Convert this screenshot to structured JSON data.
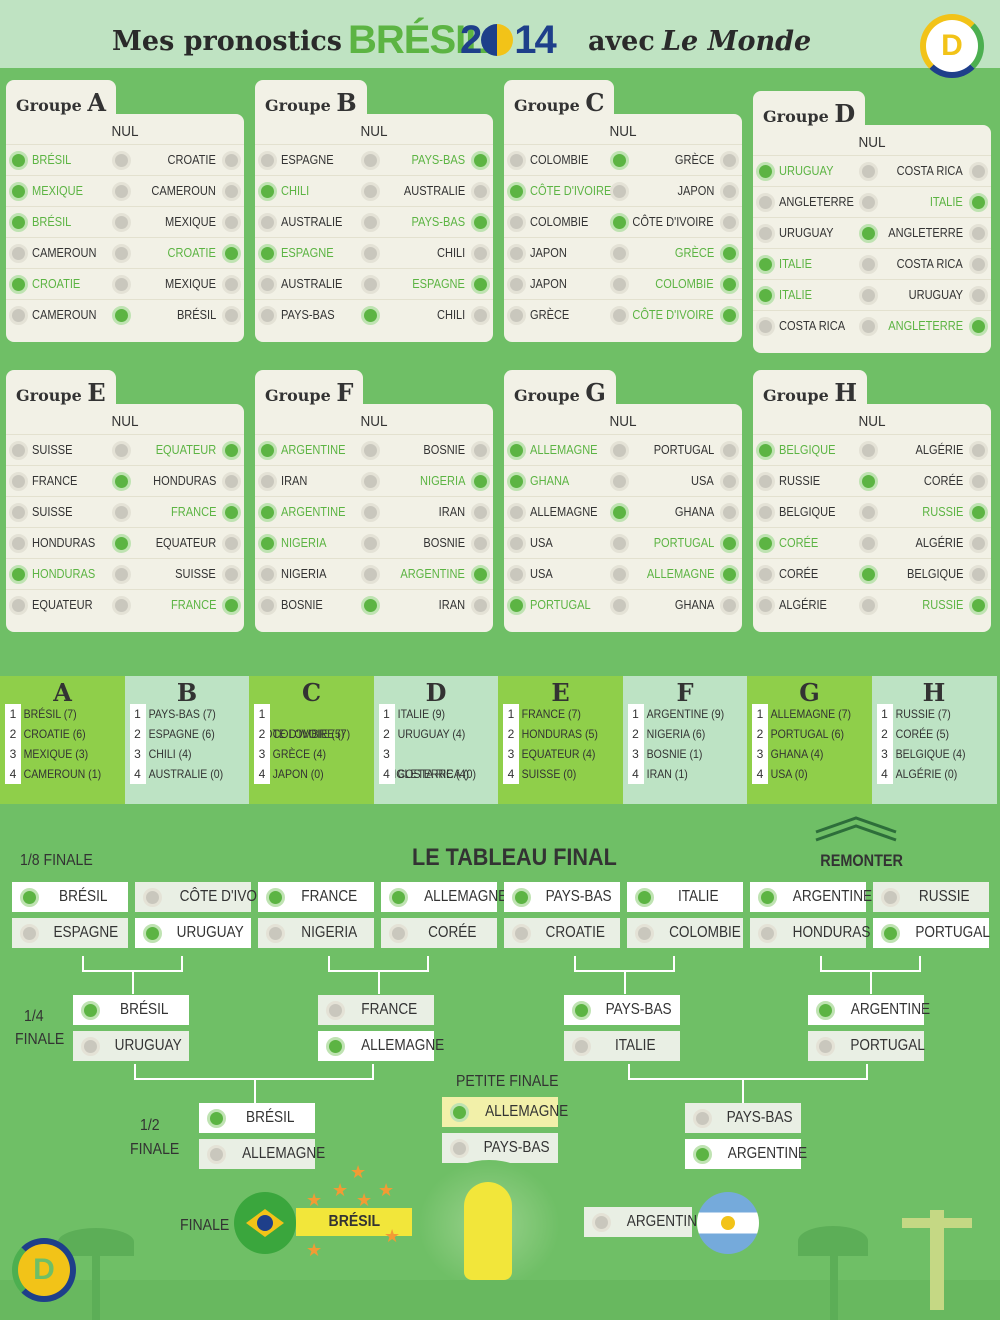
{
  "header": {
    "part1": "Mes pronostics",
    "brand": "BRÉSIL",
    "year_a": "2",
    "year_b": "14",
    "part2": "avec",
    "part3": "Le Monde",
    "logo": "D"
  },
  "group_word": "Groupe",
  "nul": "NUL",
  "groups": [
    {
      "letter": "A",
      "matches": [
        {
          "home": "BRÉSIL",
          "away": "CROATIE",
          "pick": "home"
        },
        {
          "home": "MEXIQUE",
          "away": "CAMEROUN",
          "pick": "home"
        },
        {
          "home": "BRÉSIL",
          "away": "MEXIQUE",
          "pick": "home"
        },
        {
          "home": "CAMEROUN",
          "away": "CROATIE",
          "pick": "away"
        },
        {
          "home": "CROATIE",
          "away": "MEXIQUE",
          "pick": "home"
        },
        {
          "home": "CAMEROUN",
          "away": "BRÉSIL",
          "pick": "draw"
        }
      ]
    },
    {
      "letter": "B",
      "matches": [
        {
          "home": "ESPAGNE",
          "away": "PAYS-BAS",
          "pick": "away"
        },
        {
          "home": "CHILI",
          "away": "AUSTRALIE",
          "pick": "home"
        },
        {
          "home": "AUSTRALIE",
          "away": "PAYS-BAS",
          "pick": "away"
        },
        {
          "home": "ESPAGNE",
          "away": "CHILI",
          "pick": "home"
        },
        {
          "home": "AUSTRALIE",
          "away": "ESPAGNE",
          "pick": "away"
        },
        {
          "home": "PAYS-BAS",
          "away": "CHILI",
          "pick": "draw"
        }
      ]
    },
    {
      "letter": "C",
      "matches": [
        {
          "home": "COLOMBIE",
          "away": "GRÈCE",
          "pick": "draw"
        },
        {
          "home": "CÔTE D'IVOIRE",
          "away": "JAPON",
          "pick": "home"
        },
        {
          "home": "COLOMBIE",
          "away": "CÔTE D'IVOIRE",
          "pick": "draw"
        },
        {
          "home": "JAPON",
          "away": "GRÈCE",
          "pick": "away"
        },
        {
          "home": "JAPON",
          "away": "COLOMBIE",
          "pick": "away"
        },
        {
          "home": "GRÈCE",
          "away": "CÔTE D'IVOIRE",
          "pick": "away"
        }
      ]
    },
    {
      "letter": "D",
      "matches": [
        {
          "home": "URUGUAY",
          "away": "COSTA RICA",
          "pick": "home"
        },
        {
          "home": "ANGLETERRE",
          "away": "ITALIE",
          "pick": "away"
        },
        {
          "home": "URUGUAY",
          "away": "ANGLETERRE",
          "pick": "draw"
        },
        {
          "home": "ITALIE",
          "away": "COSTA RICA",
          "pick": "home"
        },
        {
          "home": "ITALIE",
          "away": "URUGUAY",
          "pick": "home"
        },
        {
          "home": "COSTA RICA",
          "away": "ANGLETERRE",
          "pick": "away"
        }
      ]
    },
    {
      "letter": "E",
      "matches": [
        {
          "home": "SUISSE",
          "away": "EQUATEUR",
          "pick": "away"
        },
        {
          "home": "FRANCE",
          "away": "HONDURAS",
          "pick": "draw"
        },
        {
          "home": "SUISSE",
          "away": "FRANCE",
          "pick": "away"
        },
        {
          "home": "HONDURAS",
          "away": "EQUATEUR",
          "pick": "draw"
        },
        {
          "home": "HONDURAS",
          "away": "SUISSE",
          "pick": "home"
        },
        {
          "home": "EQUATEUR",
          "away": "FRANCE",
          "pick": "away"
        }
      ]
    },
    {
      "letter": "F",
      "matches": [
        {
          "home": "ARGENTINE",
          "away": "BOSNIE",
          "pick": "home"
        },
        {
          "home": "IRAN",
          "away": "NIGERIA",
          "pick": "away"
        },
        {
          "home": "ARGENTINE",
          "away": "IRAN",
          "pick": "home"
        },
        {
          "home": "NIGERIA",
          "away": "BOSNIE",
          "pick": "home"
        },
        {
          "home": "NIGERIA",
          "away": "ARGENTINE",
          "pick": "away"
        },
        {
          "home": "BOSNIE",
          "away": "IRAN",
          "pick": "draw"
        }
      ]
    },
    {
      "letter": "G",
      "matches": [
        {
          "home": "ALLEMAGNE",
          "away": "PORTUGAL",
          "pick": "home"
        },
        {
          "home": "GHANA",
          "away": "USA",
          "pick": "home"
        },
        {
          "home": "ALLEMAGNE",
          "away": "GHANA",
          "pick": "draw"
        },
        {
          "home": "USA",
          "away": "PORTUGAL",
          "pick": "away"
        },
        {
          "home": "USA",
          "away": "ALLEMAGNE",
          "pick": "away"
        },
        {
          "home": "PORTUGAL",
          "away": "GHANA",
          "pick": "home"
        }
      ]
    },
    {
      "letter": "H",
      "matches": [
        {
          "home": "BELGIQUE",
          "away": "ALGÉRIE",
          "pick": "home"
        },
        {
          "home": "RUSSIE",
          "away": "CORÉE",
          "pick": "draw"
        },
        {
          "home": "BELGIQUE",
          "away": "RUSSIE",
          "pick": "away"
        },
        {
          "home": "CORÉE",
          "away": "ALGÉRIE",
          "pick": "home"
        },
        {
          "home": "CORÉE",
          "away": "BELGIQUE",
          "pick": "draw"
        },
        {
          "home": "ALGÉRIE",
          "away": "RUSSIE",
          "pick": "away"
        }
      ]
    }
  ],
  "standings": [
    {
      "letter": "A",
      "rows": [
        "BRÉSIL (7)",
        "CROATIE (6)",
        "MEXIQUE (3)",
        "CAMEROUN (1)"
      ]
    },
    {
      "letter": "B",
      "rows": [
        "PAYS-BAS (7)",
        "ESPAGNE (6)",
        "CHILI (4)",
        "AUSTRALIE (0)"
      ]
    },
    {
      "letter": "C",
      "rows": [
        "CÔTE D'IVOIRE (7)",
        "COLOMBIE (5)",
        "GRÈCE (4)",
        "JAPON (0)"
      ]
    },
    {
      "letter": "D",
      "rows": [
        "ITALIE (9)",
        "URUGUAY (4)",
        "ANGLETERRE (4)",
        "COSTA RICA (0)"
      ]
    },
    {
      "letter": "E",
      "rows": [
        "FRANCE (7)",
        "HONDURAS (5)",
        "EQUATEUR (4)",
        "SUISSE (0)"
      ]
    },
    {
      "letter": "F",
      "rows": [
        "ARGENTINE (9)",
        "NIGERIA (6)",
        "BOSNIE (1)",
        "IRAN (1)"
      ]
    },
    {
      "letter": "G",
      "rows": [
        "ALLEMAGNE (7)",
        "PORTUGAL (6)",
        "GHANA (4)",
        "USA (0)"
      ]
    },
    {
      "letter": "H",
      "rows": [
        "RUSSIE (7)",
        "CORÉE (5)",
        "BELGIQUE (4)",
        "ALGÉRIE (0)"
      ]
    }
  ],
  "bracket": {
    "title": "LE TABLEAU FINAL",
    "remonter": "REMONTER",
    "r16_label": "1/8 FINALE",
    "qf_label_a": "1/4",
    "qf_label_b": "FINALE",
    "sf_label_a": "1/2",
    "sf_label_b": "FINALE",
    "third_label": "PETITE FINALE",
    "final_label": "FINALE",
    "r16": [
      {
        "a": "BRÉSIL",
        "b": "ESPAGNE",
        "w": "a"
      },
      {
        "a": "CÔTE D'IVOIRE",
        "b": "URUGUAY",
        "w": "b"
      },
      {
        "a": "FRANCE",
        "b": "NIGERIA",
        "w": "a"
      },
      {
        "a": "ALLEMAGNE",
        "b": "CORÉE",
        "w": "a"
      },
      {
        "a": "PAYS-BAS",
        "b": "CROATIE",
        "w": "a"
      },
      {
        "a": "ITALIE",
        "b": "COLOMBIE",
        "w": "a"
      },
      {
        "a": "ARGENTINE",
        "b": "HONDURAS",
        "w": "a"
      },
      {
        "a": "RUSSIE",
        "b": "PORTUGAL",
        "w": "b"
      }
    ],
    "qf": [
      {
        "a": "BRÉSIL",
        "b": "URUGUAY",
        "w": "a"
      },
      {
        "a": "FRANCE",
        "b": "ALLEMAGNE",
        "w": "b"
      },
      {
        "a": "PAYS-BAS",
        "b": "ITALIE",
        "w": "a"
      },
      {
        "a": "ARGENTINE",
        "b": "PORTUGAL",
        "w": "a"
      }
    ],
    "sf": [
      {
        "a": "BRÉSIL",
        "b": "ALLEMAGNE",
        "w": "a"
      },
      {
        "a": "PAYS-BAS",
        "b": "ARGENTINE",
        "w": "b"
      }
    ],
    "third": {
      "a": "ALLEMAGNE",
      "b": "PAYS-BAS",
      "w": "a"
    },
    "final": {
      "winner": "BRÉSIL",
      "runner_up": "ARGENTINE"
    }
  }
}
